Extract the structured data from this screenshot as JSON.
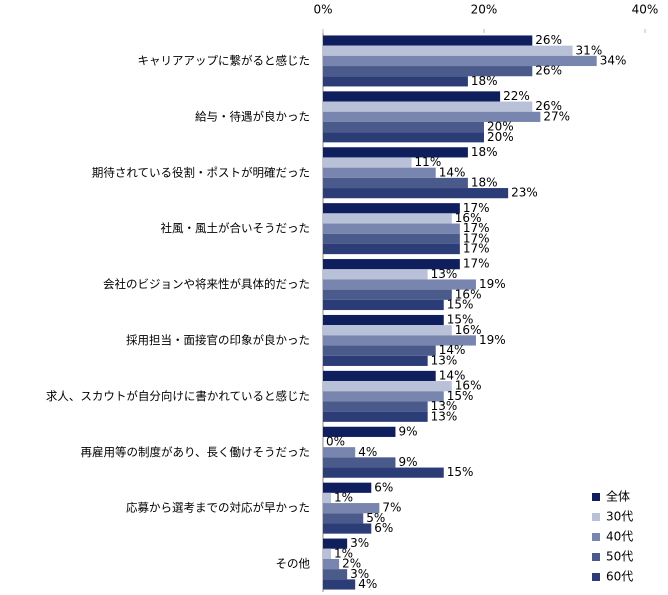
{
  "chart_data": {
    "type": "barh",
    "categories": [
      "キャリアアップに繋がると感じた",
      "給与・待遇が良かった",
      "期待されている役割・ポストが明確だった",
      "社風・風土が合いそうだった",
      "会社のビジョンや将来性が具体的だった",
      "採用担当・面接官の印象が良かった",
      "求人、スカウトが自分向けに書かれていると感じた",
      "再雇用等の制度があり、長く働けそうだった",
      "応募から選考までの対応が早かった",
      "その他"
    ],
    "series": [
      {
        "name": "全体",
        "color": "#0f1f5e",
        "values": [
          26,
          22,
          18,
          17,
          17,
          15,
          14,
          9,
          6,
          3
        ],
        "value_labels": [
          "26%",
          "22%",
          "18%",
          "17%",
          "17%",
          "15%",
          "14%",
          "9%",
          "6%",
          "3%"
        ]
      },
      {
        "name": "30代",
        "color": "#b9c1d9",
        "values": [
          31,
          26,
          11,
          16,
          13,
          16,
          16,
          0,
          1,
          1
        ],
        "value_labels": [
          "31%",
          "26%",
          "11%",
          "16%",
          "13%",
          "16%",
          "16%",
          "0%",
          "1%",
          "1%"
        ]
      },
      {
        "name": "40代",
        "color": "#7885ae",
        "values": [
          34,
          27,
          14,
          17,
          19,
          19,
          15,
          4,
          7,
          2
        ],
        "value_labels": [
          "34%",
          "27%",
          "14%",
          "17%",
          "19%",
          "19%",
          "15%",
          "4%",
          "7%",
          "2%"
        ]
      },
      {
        "name": "50代",
        "color": "#4a5a8b",
        "values": [
          26,
          20,
          18,
          17,
          16,
          14,
          13,
          9,
          5,
          3
        ],
        "value_labels": [
          "26%",
          "20%",
          "18%",
          "17%",
          "16%",
          "14%",
          "13%",
          "9%",
          "5%",
          "3%"
        ]
      },
      {
        "name": "60代",
        "color": "#2b3c77",
        "values": [
          18,
          20,
          23,
          17,
          15,
          13,
          13,
          15,
          6,
          4
        ],
        "value_labels": [
          "18%",
          "20%",
          "23%",
          "17%",
          "15%",
          "13%",
          "13%",
          "15%",
          "6%",
          "4%"
        ]
      }
    ],
    "xlim": [
      0,
      40
    ],
    "xticks": [
      {
        "value": 0,
        "label": "0%"
      },
      {
        "value": 20,
        "label": "20%"
      },
      {
        "value": 40,
        "label": "40%"
      }
    ],
    "legend": "bottom-right"
  }
}
